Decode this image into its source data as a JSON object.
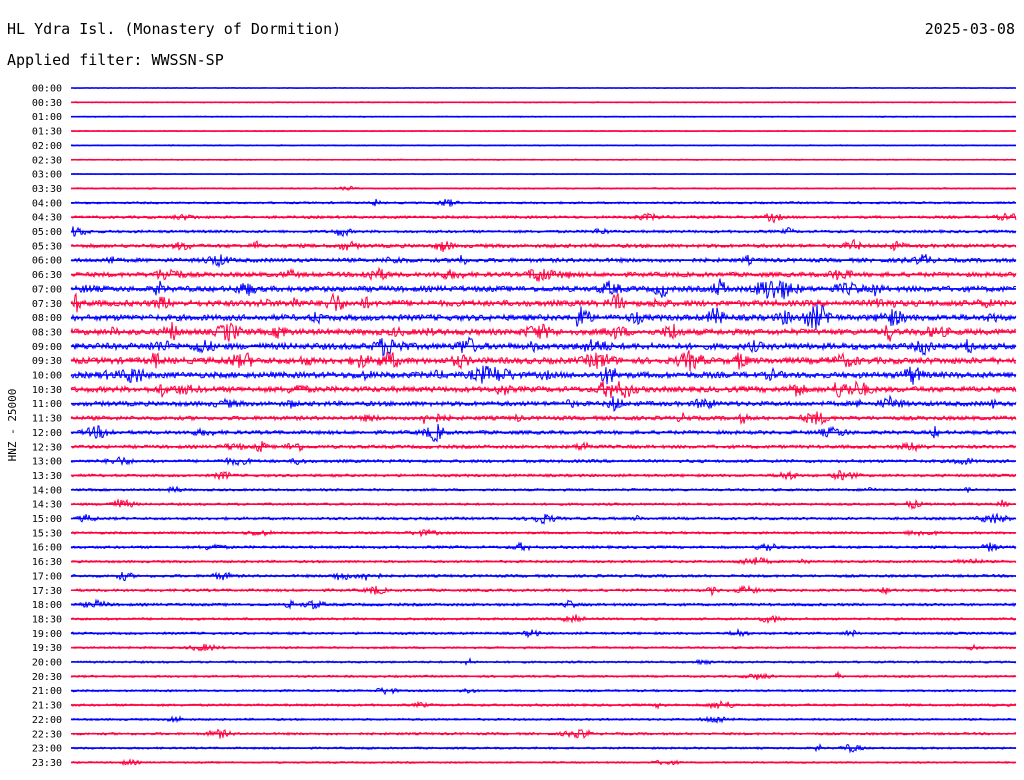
{
  "header": {
    "station_title": "HL Ydra Isl. (Monastery of Dormition)",
    "date": "2025-03-08",
    "filter": "Applied filter: WWSSN-SP"
  },
  "chart_data": {
    "type": "line",
    "title": "HL Ydra Isl. (Monastery of Dormition)",
    "subtitle": "Applied filter: WWSSN-SP",
    "ylabel": "HNZ - 25000",
    "xlabel": "",
    "row_labels": [
      "00:00",
      "00:30",
      "01:00",
      "01:30",
      "02:00",
      "02:30",
      "03:00",
      "03:30",
      "04:00",
      "04:30",
      "05:00",
      "05:30",
      "06:00",
      "06:30",
      "07:00",
      "07:30",
      "08:00",
      "08:30",
      "09:00",
      "09:30",
      "10:00",
      "10:30",
      "11:00",
      "11:30",
      "12:00",
      "12:30",
      "13:00",
      "13:30",
      "14:00",
      "14:30",
      "15:00",
      "15:30",
      "16:00",
      "16:30",
      "17:00",
      "17:30",
      "18:00",
      "18:30",
      "19:00",
      "19:30",
      "20:00",
      "20:30",
      "21:00",
      "21:30",
      "22:00",
      "22:30",
      "23:00",
      "23:30"
    ],
    "trace_colors": [
      "#0000ff",
      "#ff0040"
    ],
    "activity_level": [
      0.02,
      0.05,
      0.05,
      0.06,
      0.05,
      0.06,
      0.04,
      0.1,
      0.2,
      0.3,
      0.3,
      0.45,
      0.5,
      0.6,
      0.75,
      0.8,
      0.8,
      0.8,
      0.85,
      0.85,
      0.8,
      0.75,
      0.6,
      0.5,
      0.45,
      0.4,
      0.35,
      0.3,
      0.25,
      0.25,
      0.3,
      0.25,
      0.3,
      0.25,
      0.3,
      0.3,
      0.3,
      0.25,
      0.25,
      0.2,
      0.2,
      0.2,
      0.2,
      0.25,
      0.2,
      0.25,
      0.2,
      0.15
    ]
  }
}
